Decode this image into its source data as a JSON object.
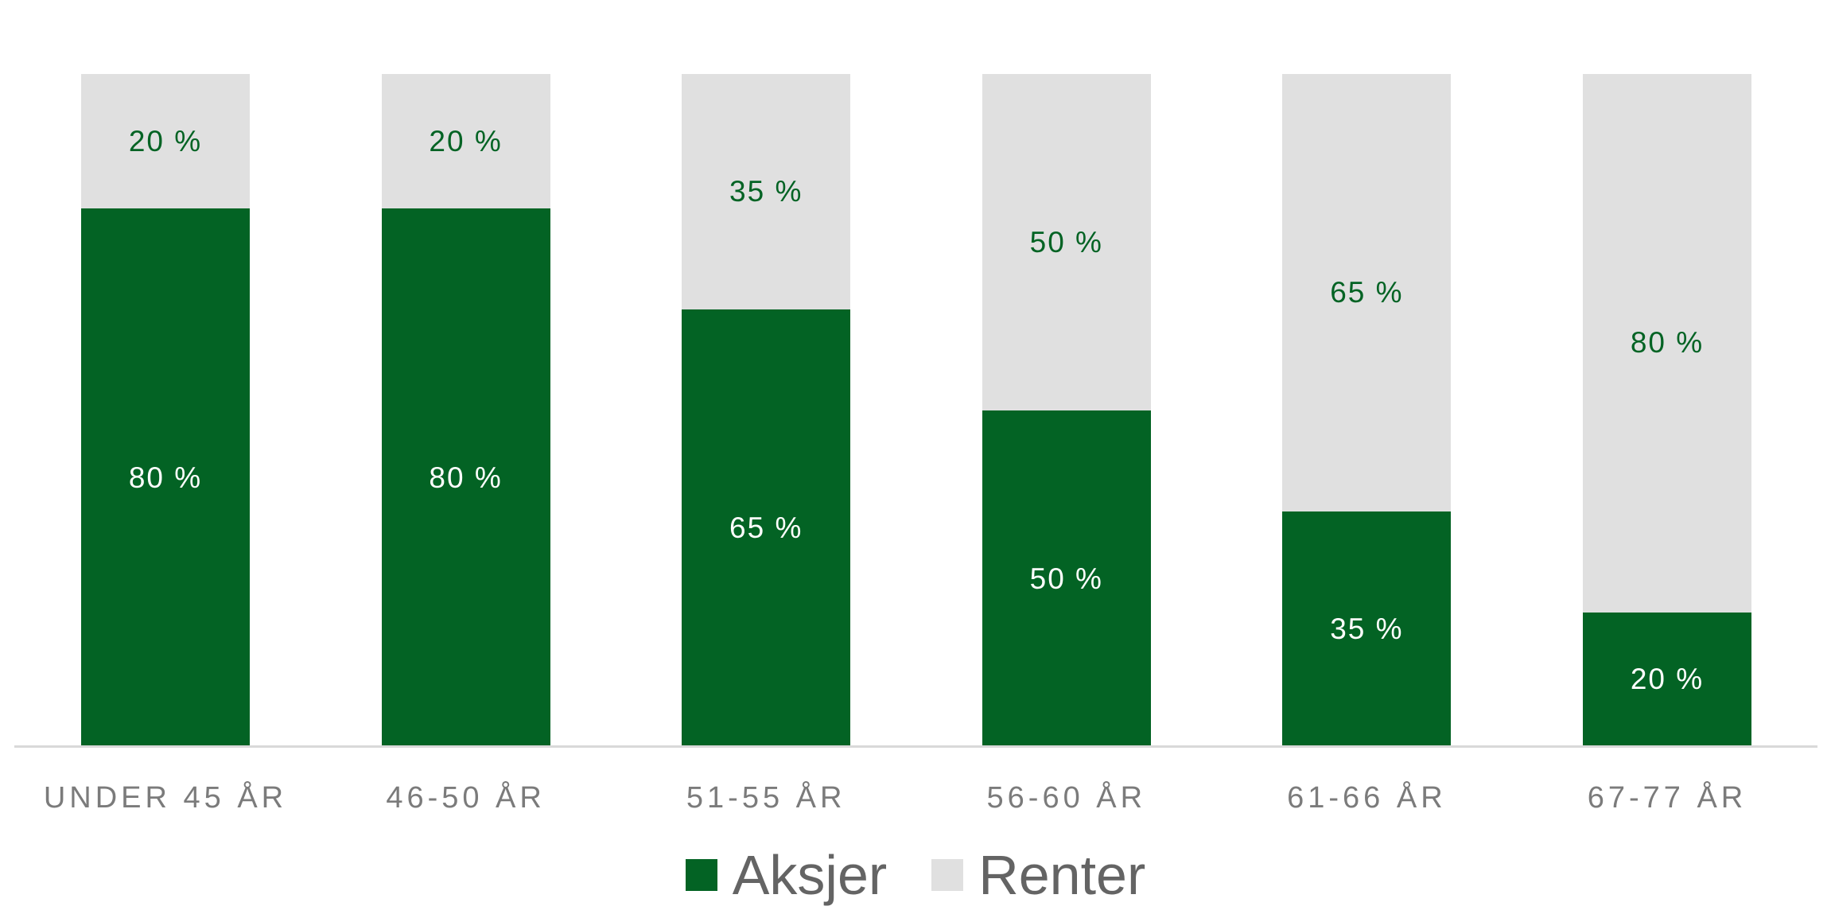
{
  "chart_data": {
    "type": "bar",
    "stacked": true,
    "orientation": "vertical",
    "categories": [
      "UNDER 45 ÅR",
      "46-50 ÅR",
      "51-55 ÅR",
      "56-60 ÅR",
      "61-66 ÅR",
      "67-77 ÅR"
    ],
    "series": [
      {
        "name": "Aksjer",
        "color": "#036324",
        "label_color": "#FFFFFF",
        "values": [
          80,
          80,
          65,
          50,
          35,
          20
        ]
      },
      {
        "name": "Renter",
        "color": "#E0E0E0",
        "label_color": "#036324",
        "values": [
          20,
          20,
          35,
          50,
          65,
          80
        ]
      }
    ],
    "value_label_suffix": " %",
    "ylim": [
      0,
      100
    ],
    "grid": false,
    "y_axis_visible": false,
    "legend_position": "bottom",
    "title": "",
    "xlabel": "",
    "ylabel": ""
  },
  "axis": {
    "baseline_color": "#D9D9D9"
  },
  "labels": {
    "category_color": "#7B7B7B",
    "legend_text_color": "#646464"
  }
}
